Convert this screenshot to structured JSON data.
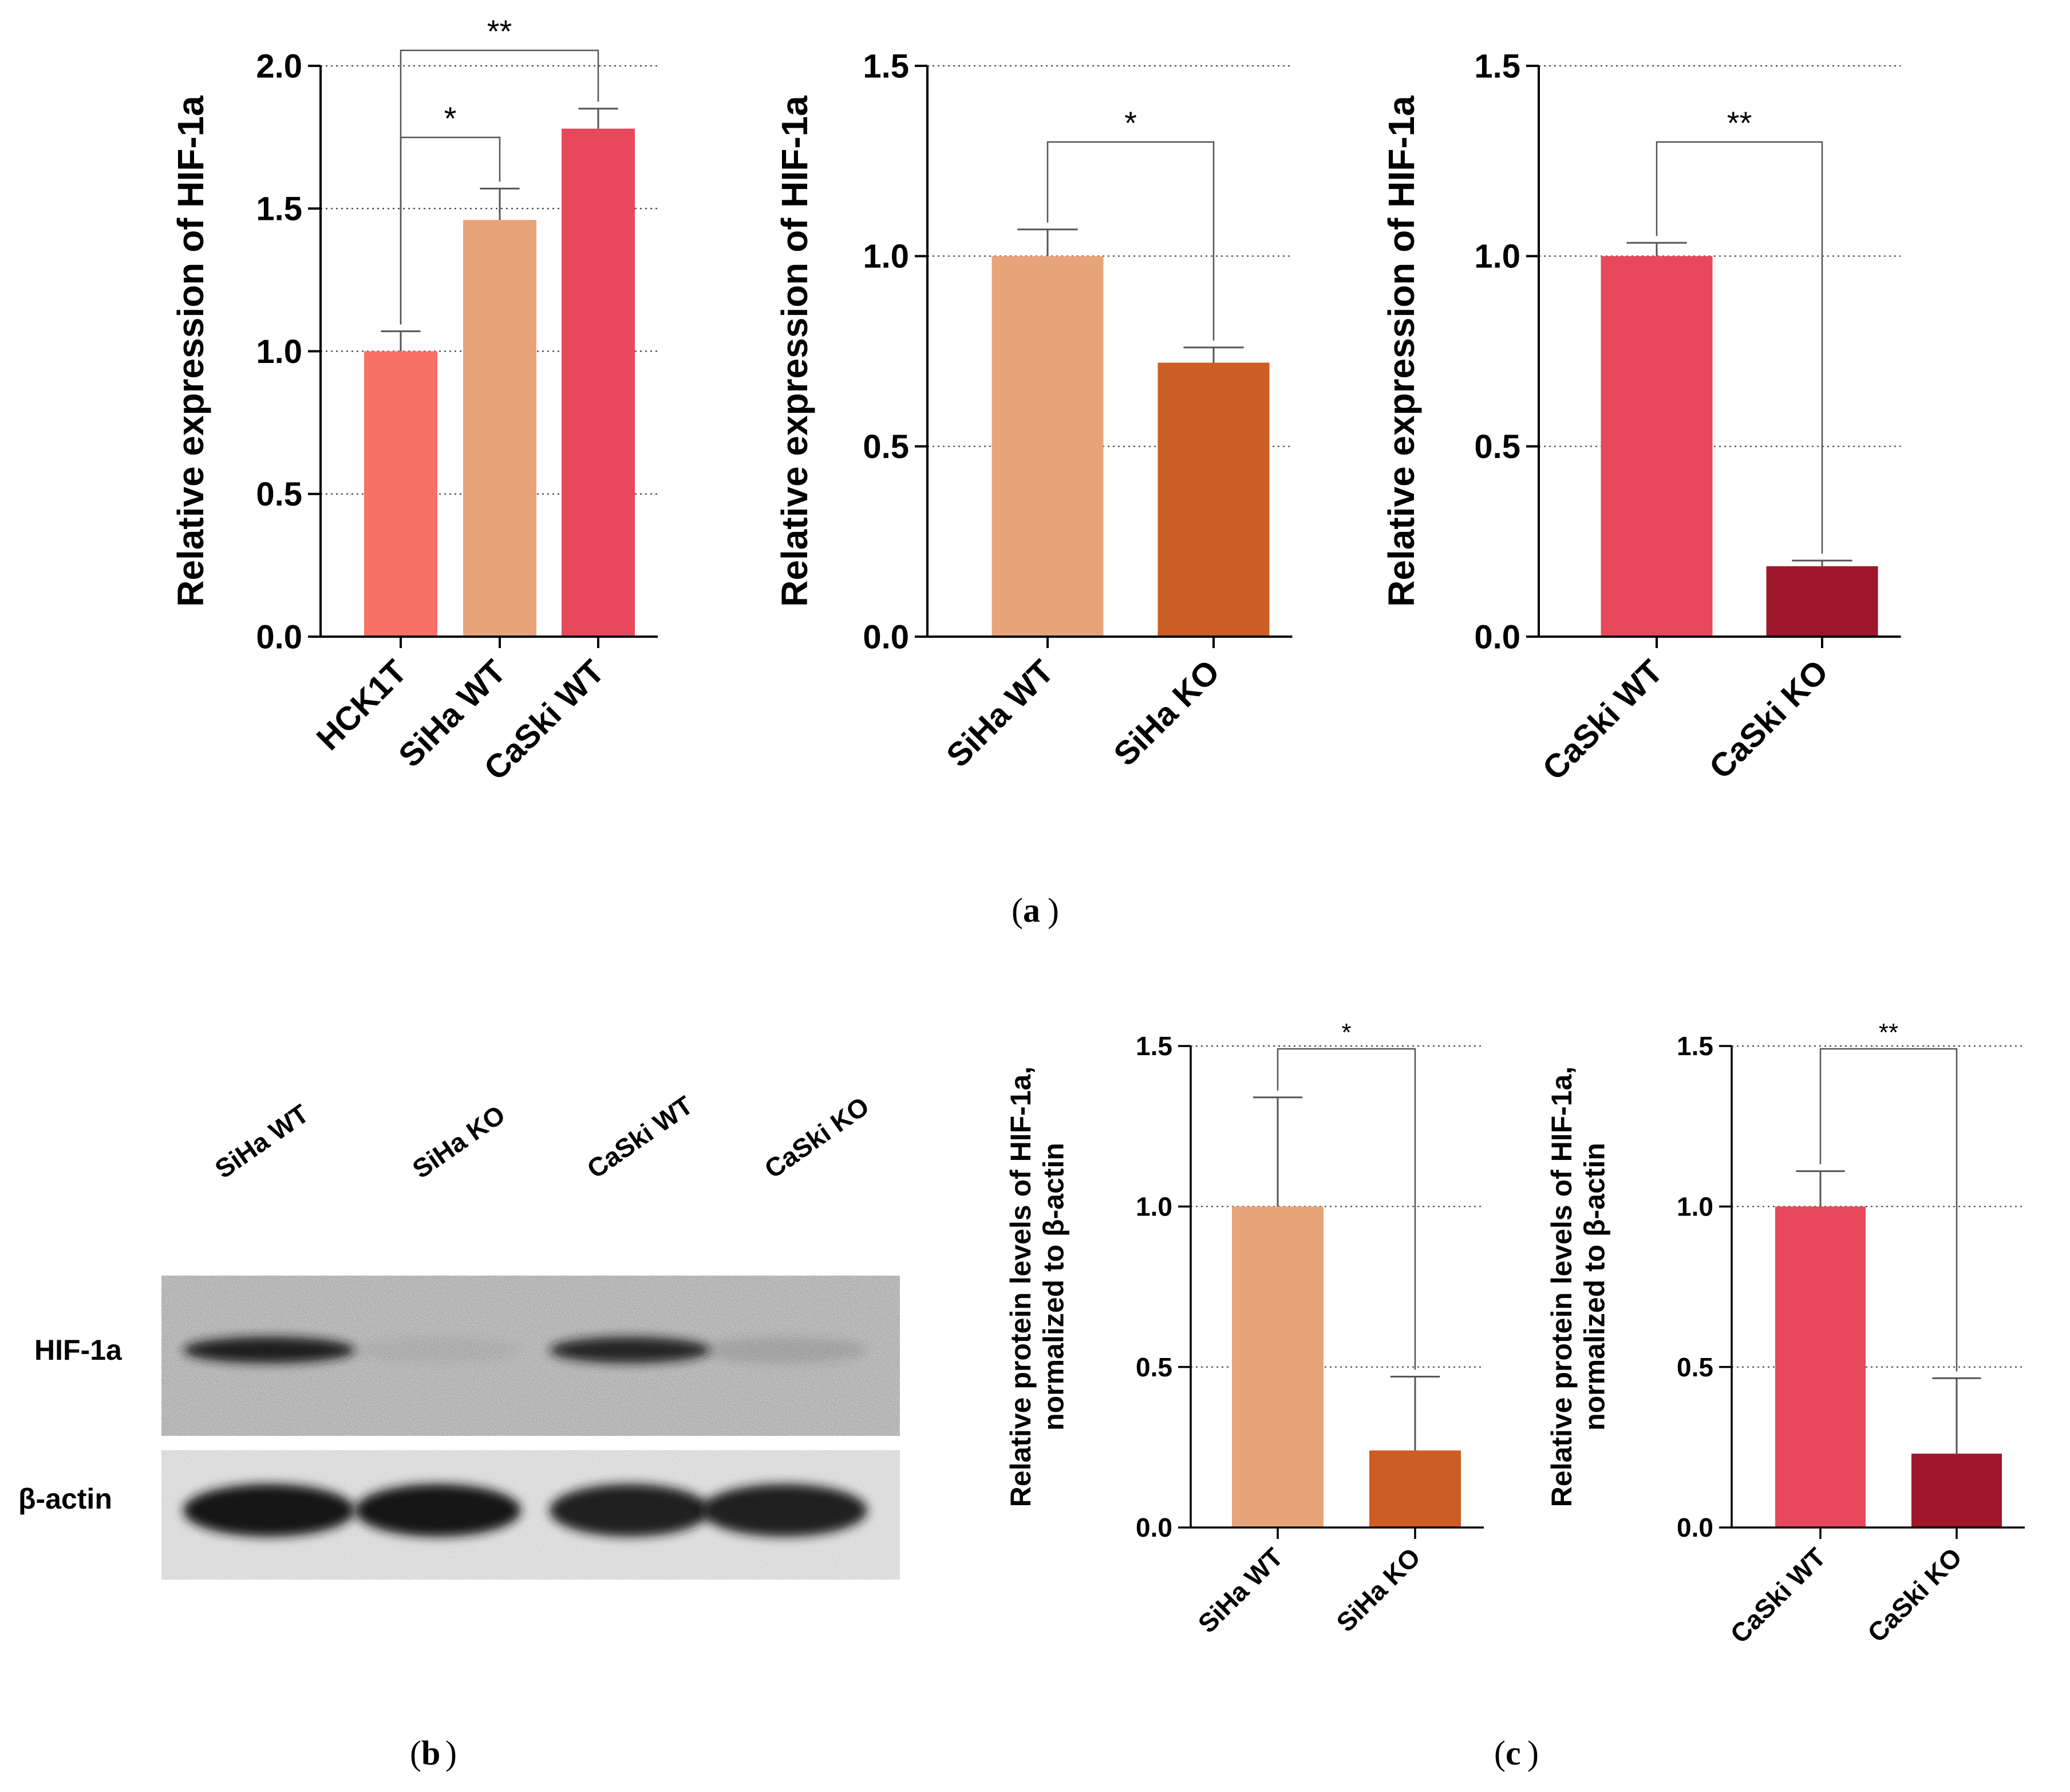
{
  "panel_labels": {
    "a": "a",
    "b": "b",
    "c": "c"
  },
  "blot": {
    "lanes": [
      "SiHa WT",
      "SiHa KO",
      "CaSki WT",
      "CaSki KO"
    ],
    "rows": [
      "HIF-1a",
      "β-actin"
    ],
    "hif_intensity": [
      0.95,
      0.05,
      0.9,
      0.12
    ],
    "actin_intensity": [
      1.0,
      1.0,
      0.95,
      0.95
    ]
  },
  "chart_data": [
    {
      "type": "bar",
      "ylabel": "Relative expression of HIF-1a",
      "ylim": [
        0,
        2.0
      ],
      "yticks": [
        "0.0",
        "0.5",
        "1.0",
        "1.5",
        "2.0"
      ],
      "categories": [
        "HCK1T",
        "SiHa WT",
        "CaSki WT"
      ],
      "values": [
        1.0,
        1.46,
        1.78
      ],
      "errors": [
        0.07,
        0.11,
        0.07
      ],
      "colors": [
        "#F87066",
        "#E8A479",
        "#E8485B"
      ],
      "grid": "dotted-horizontal",
      "significance": [
        {
          "from": 0,
          "to": 1,
          "label": "*"
        },
        {
          "from": 0,
          "to": 2,
          "label": "**"
        }
      ]
    },
    {
      "type": "bar",
      "ylabel": "Relative expression of HIF-1a",
      "ylim": [
        0,
        1.5
      ],
      "yticks": [
        "0.0",
        "0.5",
        "1.0",
        "1.5"
      ],
      "categories": [
        "SiHa WT",
        "SiHa KO"
      ],
      "values": [
        1.0,
        0.72
      ],
      "errors": [
        0.07,
        0.04
      ],
      "colors": [
        "#E8A479",
        "#CC5E24"
      ],
      "grid": "dotted-horizontal",
      "significance": [
        {
          "from": 0,
          "to": 1,
          "label": "*"
        }
      ]
    },
    {
      "type": "bar",
      "ylabel": "Relative expression of HIF-1a",
      "ylim": [
        0,
        1.5
      ],
      "yticks": [
        "0.0",
        "0.5",
        "1.0",
        "1.5"
      ],
      "categories": [
        "CaSki WT",
        "CaSki KO"
      ],
      "values": [
        1.0,
        0.185
      ],
      "errors": [
        0.035,
        0.015
      ],
      "colors": [
        "#E8485B",
        "#A0162A"
      ],
      "grid": "dotted-horizontal",
      "significance": [
        {
          "from": 0,
          "to": 1,
          "label": "**"
        }
      ]
    },
    {
      "type": "bar",
      "ylabel": [
        "Relative protein levels of HIF-1a,",
        "normalized to β-actin"
      ],
      "ylim": [
        0,
        1.5
      ],
      "yticks": [
        "0.0",
        "0.5",
        "1.0",
        "1.5"
      ],
      "categories": [
        "SiHa WT",
        "SiHa KO"
      ],
      "values": [
        1.0,
        0.24
      ],
      "errors": [
        0.34,
        0.23
      ],
      "colors": [
        "#E8A479",
        "#CC5E24"
      ],
      "grid": "dotted-horizontal",
      "significance": [
        {
          "from": 0,
          "to": 1,
          "label": "*"
        }
      ]
    },
    {
      "type": "bar",
      "ylabel": [
        "Relative protein levels of HIF-1a,",
        "normalized to β-actin"
      ],
      "ylim": [
        0,
        1.5
      ],
      "yticks": [
        "0.0",
        "0.5",
        "1.0",
        "1.5"
      ],
      "categories": [
        "CaSki WT",
        "CaSki KO"
      ],
      "values": [
        1.0,
        0.23
      ],
      "errors": [
        0.11,
        0.235
      ],
      "colors": [
        "#E8485B",
        "#A0162A"
      ],
      "grid": "dotted-horizontal",
      "significance": [
        {
          "from": 0,
          "to": 1,
          "label": "**"
        }
      ]
    }
  ]
}
